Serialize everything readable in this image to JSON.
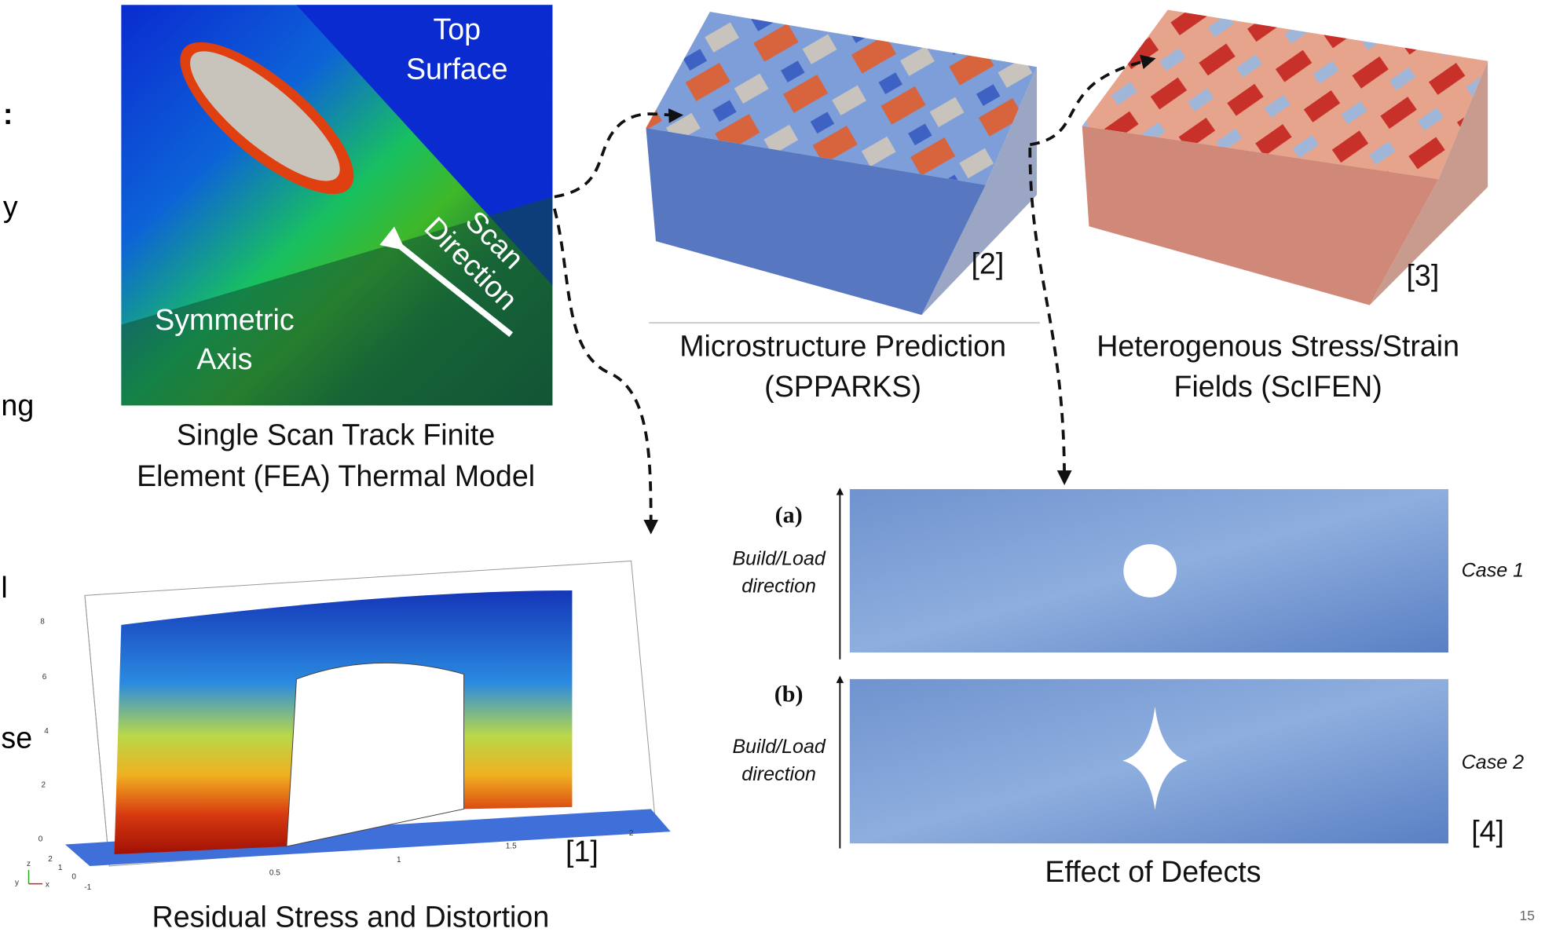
{
  "left_fragments": [
    ":",
    "y",
    "ng",
    "l",
    "se"
  ],
  "thermal_model": {
    "top_surface": [
      "Top",
      "Surface"
    ],
    "scan_direction": [
      "Scan",
      "Direction"
    ],
    "symmetric_axis": [
      "Symmetric",
      "Axis"
    ],
    "caption": [
      "Single Scan Track Finite",
      "Element (FEA) Thermal Model"
    ]
  },
  "microstructure": {
    "ref": "[2]",
    "caption": [
      "Microstructure Prediction",
      "(SPPARKS)"
    ]
  },
  "stress_fields": {
    "ref": "[3]",
    "caption": [
      "Heterogenous Stress/Strain",
      "Fields (ScIFEN)"
    ]
  },
  "defects": {
    "panels": [
      {
        "tag": "(a)",
        "axis_label": [
          "Build/Load",
          "direction"
        ],
        "case": "Case 1"
      },
      {
        "tag": "(b)",
        "axis_label": [
          "Build/Load",
          "direction"
        ],
        "case": "Case 2"
      }
    ],
    "ref": "[4]",
    "caption": "Effect of Defects"
  },
  "residual_stress": {
    "z_ticks": [
      "8",
      "6",
      "4",
      "2",
      "0"
    ],
    "x_ticks": [
      "0.5",
      "1",
      "1.5",
      "2"
    ],
    "y_ticks": [
      "-1",
      "0",
      "1",
      "2"
    ],
    "axes": [
      "z",
      "y",
      "x"
    ],
    "ref": "[1]",
    "caption": "Residual Stress and Distortion"
  },
  "page_number": "15"
}
